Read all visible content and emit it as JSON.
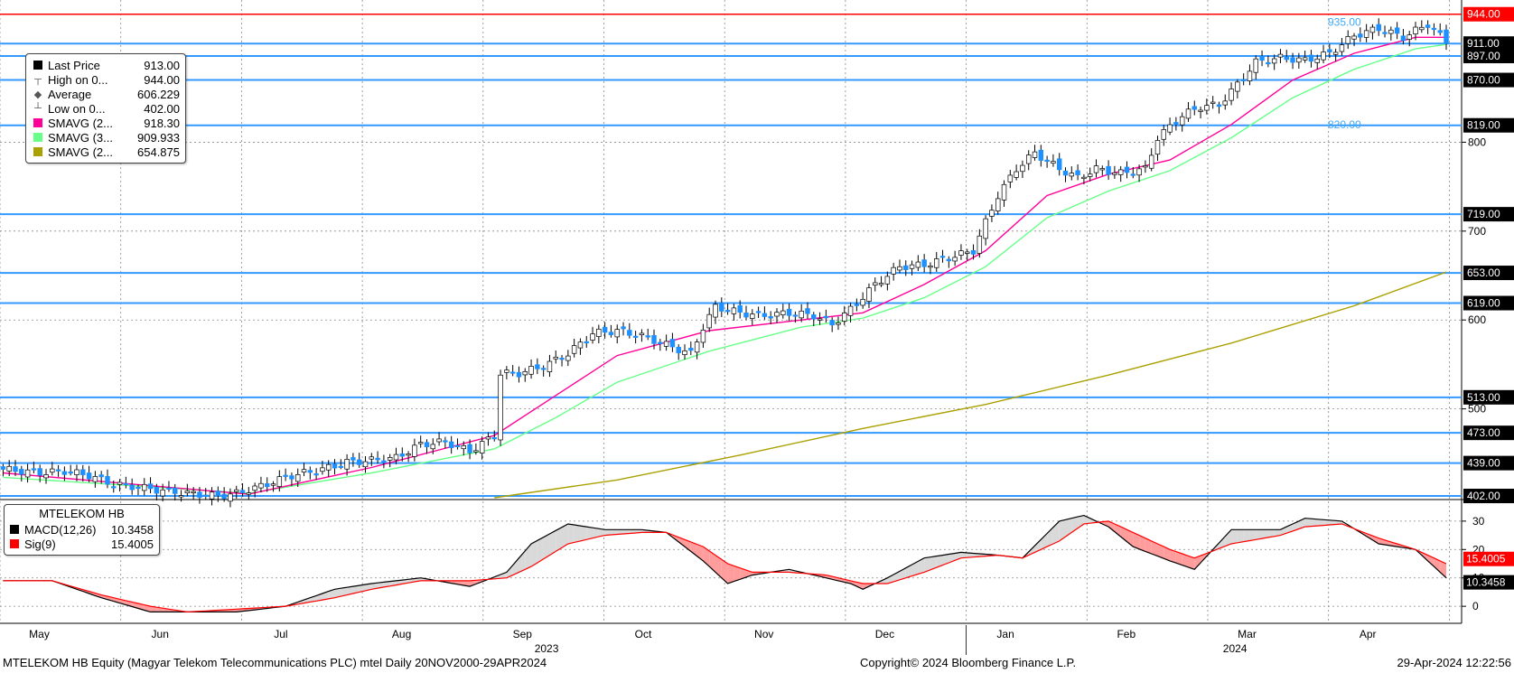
{
  "window": {
    "footer_left": "MTELEKOM HB Equity (Magyar Telekom Telecommunications PLC) mtel  Daily 20NOV2000-29APR2024",
    "footer_center": "Copyright© 2024 Bloomberg Finance L.P.",
    "footer_right": "29-Apr-2024 12:22:56"
  },
  "price_legend": {
    "rows": [
      {
        "label": "Last Price",
        "value": "913.00",
        "color": "#000000",
        "icon": "square-swatch"
      },
      {
        "label": "High on 0...",
        "value": "944.00",
        "color": "#555555",
        "icon": "high-marker-icon"
      },
      {
        "label": "Average",
        "value": "606.229",
        "color": "#555555",
        "icon": "average-marker-icon"
      },
      {
        "label": "Low on 0...",
        "value": "402.00",
        "color": "#555555",
        "icon": "low-marker-icon"
      },
      {
        "label": "SMAVG (2...",
        "value": "918.30",
        "color": "#ff0099",
        "icon": "square-swatch"
      },
      {
        "label": "SMAVG (3...",
        "value": "909.933",
        "color": "#66ff88",
        "icon": "square-swatch"
      },
      {
        "label": "SMAVG (2...",
        "value": "654.875",
        "color": "#aaa000",
        "icon": "square-swatch"
      }
    ]
  },
  "macd_legend": {
    "title": "MTELEKOM HB",
    "rows": [
      {
        "label": "MACD(12,26)",
        "value": "10.3458",
        "color": "#000000"
      },
      {
        "label": "Sig(9)",
        "value": "15.4005",
        "color": "#ff0000"
      }
    ]
  },
  "chart_data": [
    {
      "type": "candlestick",
      "ylim": [
        400,
        960
      ],
      "y_ticks": [
        500,
        600,
        700,
        800
      ],
      "x_axis": {
        "months": [
          "May",
          "Jun",
          "Jul",
          "Aug",
          "Sep",
          "Oct",
          "Nov",
          "Dec",
          "Jan",
          "Feb",
          "Mar",
          "Apr"
        ],
        "years": [
          "2023",
          "2024"
        ]
      },
      "horizontal_levels": [
        944.0,
        911.0,
        897.0,
        870.0,
        819.0,
        719.0,
        653.0,
        619.0,
        513.0,
        473.0,
        439.0,
        402.0
      ],
      "level_labels": [
        "944.00",
        "911.00",
        "897.00",
        "870.00",
        "819.00",
        "719.00",
        "653.00",
        "619.00",
        "513.00",
        "473.00",
        "439.00",
        "402.00"
      ],
      "annotations": [
        {
          "text": "935.00",
          "y": 935
        },
        {
          "text": "820.00",
          "y": 820
        }
      ],
      "close_anchors": [
        [
          0,
          432
        ],
        [
          6,
          428
        ],
        [
          10,
          430
        ],
        [
          14,
          425
        ],
        [
          18,
          415
        ],
        [
          22,
          412
        ],
        [
          26,
          408
        ],
        [
          30,
          405
        ],
        [
          35,
          402
        ],
        [
          38,
          405
        ],
        [
          42,
          413
        ],
        [
          47,
          425
        ],
        [
          52,
          432
        ],
        [
          56,
          440
        ],
        [
          60,
          442
        ],
        [
          64,
          445
        ],
        [
          68,
          460
        ],
        [
          72,
          463
        ],
        [
          76,
          452
        ],
        [
          80,
          470
        ],
        [
          81,
          540
        ],
        [
          84,
          540
        ],
        [
          88,
          548
        ],
        [
          92,
          562
        ],
        [
          96,
          585
        ],
        [
          100,
          588
        ],
        [
          104,
          582
        ],
        [
          108,
          572
        ],
        [
          112,
          562
        ],
        [
          114,
          592
        ],
        [
          116,
          615
        ],
        [
          120,
          608
        ],
        [
          124,
          605
        ],
        [
          128,
          608
        ],
        [
          132,
          605
        ],
        [
          135,
          595
        ],
        [
          138,
          612
        ],
        [
          142,
          640
        ],
        [
          146,
          660
        ],
        [
          150,
          662
        ],
        [
          154,
          670
        ],
        [
          158,
          678
        ],
        [
          160,
          710
        ],
        [
          162,
          740
        ],
        [
          165,
          770
        ],
        [
          168,
          788
        ],
        [
          172,
          770
        ],
        [
          175,
          760
        ],
        [
          178,
          770
        ],
        [
          182,
          765
        ],
        [
          186,
          770
        ],
        [
          188,
          805
        ],
        [
          192,
          830
        ],
        [
          195,
          840
        ],
        [
          198,
          842
        ],
        [
          201,
          865
        ],
        [
          204,
          890
        ],
        [
          208,
          895
        ],
        [
          212,
          892
        ],
        [
          216,
          900
        ],
        [
          220,
          920
        ],
        [
          224,
          928
        ],
        [
          228,
          918
        ],
        [
          232,
          933
        ],
        [
          235,
          913
        ]
      ],
      "sma_short": [
        [
          0,
          428
        ],
        [
          20,
          416
        ],
        [
          40,
          404
        ],
        [
          60,
          434
        ],
        [
          80,
          470
        ],
        [
          90,
          515
        ],
        [
          100,
          560
        ],
        [
          115,
          588
        ],
        [
          130,
          600
        ],
        [
          140,
          608
        ],
        [
          150,
          640
        ],
        [
          160,
          678
        ],
        [
          170,
          740
        ],
        [
          180,
          764
        ],
        [
          190,
          780
        ],
        [
          200,
          820
        ],
        [
          210,
          870
        ],
        [
          220,
          900
        ],
        [
          230,
          918
        ],
        [
          235,
          918
        ]
      ],
      "sma_mid": [
        [
          0,
          423
        ],
        [
          20,
          414
        ],
        [
          40,
          405
        ],
        [
          60,
          428
        ],
        [
          80,
          455
        ],
        [
          90,
          490
        ],
        [
          100,
          530
        ],
        [
          115,
          565
        ],
        [
          130,
          592
        ],
        [
          140,
          602
        ],
        [
          150,
          625
        ],
        [
          160,
          660
        ],
        [
          170,
          715
        ],
        [
          180,
          745
        ],
        [
          190,
          768
        ],
        [
          200,
          805
        ],
        [
          210,
          850
        ],
        [
          220,
          882
        ],
        [
          230,
          905
        ],
        [
          235,
          910
        ]
      ],
      "sma_long": [
        [
          80,
          400
        ],
        [
          100,
          420
        ],
        [
          120,
          448
        ],
        [
          140,
          478
        ],
        [
          160,
          505
        ],
        [
          180,
          538
        ],
        [
          200,
          574
        ],
        [
          220,
          616
        ],
        [
          235,
          654
        ]
      ]
    },
    {
      "type": "line",
      "ylim": [
        -6,
        36
      ],
      "y_ticks": [
        0,
        10,
        20,
        30
      ],
      "series": [
        {
          "name": "MACD(12,26)",
          "color": "#000000",
          "values": [
            [
              0,
              9
            ],
            [
              8,
              9
            ],
            [
              16,
              3
            ],
            [
              24,
              -2
            ],
            [
              30,
              -2
            ],
            [
              38,
              -2
            ],
            [
              46,
              0
            ],
            [
              54,
              6
            ],
            [
              60,
              8
            ],
            [
              68,
              10
            ],
            [
              76,
              7
            ],
            [
              82,
              12
            ],
            [
              86,
              22
            ],
            [
              92,
              29
            ],
            [
              98,
              27
            ],
            [
              104,
              27
            ],
            [
              108,
              26
            ],
            [
              114,
              16
            ],
            [
              118,
              8
            ],
            [
              122,
              11
            ],
            [
              128,
              13
            ],
            [
              134,
              10
            ],
            [
              138,
              8
            ],
            [
              140,
              6
            ],
            [
              144,
              10
            ],
            [
              150,
              17
            ],
            [
              156,
              19
            ],
            [
              162,
              18
            ],
            [
              166,
              17
            ],
            [
              172,
              30
            ],
            [
              176,
              32
            ],
            [
              180,
              28
            ],
            [
              184,
              21
            ],
            [
              190,
              16
            ],
            [
              194,
              13
            ],
            [
              200,
              27
            ],
            [
              208,
              27
            ],
            [
              212,
              31
            ],
            [
              218,
              30
            ],
            [
              224,
              22
            ],
            [
              230,
              20
            ],
            [
              235,
              10
            ]
          ]
        },
        {
          "name": "Sig(9)",
          "color": "#ff0000",
          "values": [
            [
              0,
              9
            ],
            [
              8,
              9
            ],
            [
              16,
              4
            ],
            [
              24,
              0
            ],
            [
              30,
              -2
            ],
            [
              38,
              -1
            ],
            [
              46,
              0
            ],
            [
              54,
              3
            ],
            [
              60,
              6
            ],
            [
              68,
              9
            ],
            [
              76,
              9
            ],
            [
              82,
              10
            ],
            [
              86,
              14
            ],
            [
              92,
              22
            ],
            [
              98,
              25
            ],
            [
              104,
              26
            ],
            [
              108,
              26
            ],
            [
              114,
              21
            ],
            [
              118,
              15
            ],
            [
              122,
              12
            ],
            [
              128,
              12
            ],
            [
              134,
              11
            ],
            [
              138,
              9
            ],
            [
              140,
              8
            ],
            [
              144,
              8
            ],
            [
              150,
              12
            ],
            [
              156,
              17
            ],
            [
              162,
              18
            ],
            [
              166,
              17
            ],
            [
              172,
              23
            ],
            [
              176,
              29
            ],
            [
              180,
              30
            ],
            [
              184,
              26
            ],
            [
              190,
              20
            ],
            [
              194,
              17
            ],
            [
              200,
              22
            ],
            [
              208,
              25
            ],
            [
              212,
              28
            ],
            [
              218,
              29
            ],
            [
              224,
              24
            ],
            [
              230,
              20
            ],
            [
              235,
              15
            ]
          ]
        }
      ],
      "value_labels": [
        "15.4005",
        "10.3458"
      ]
    }
  ],
  "colors": {
    "level_line": "#3399ff",
    "label_box": "#000000",
    "label_red": "#ff0000",
    "bull_candle": "#ffffff",
    "bear_candle": "#1e90ff",
    "grid": "#888888"
  }
}
